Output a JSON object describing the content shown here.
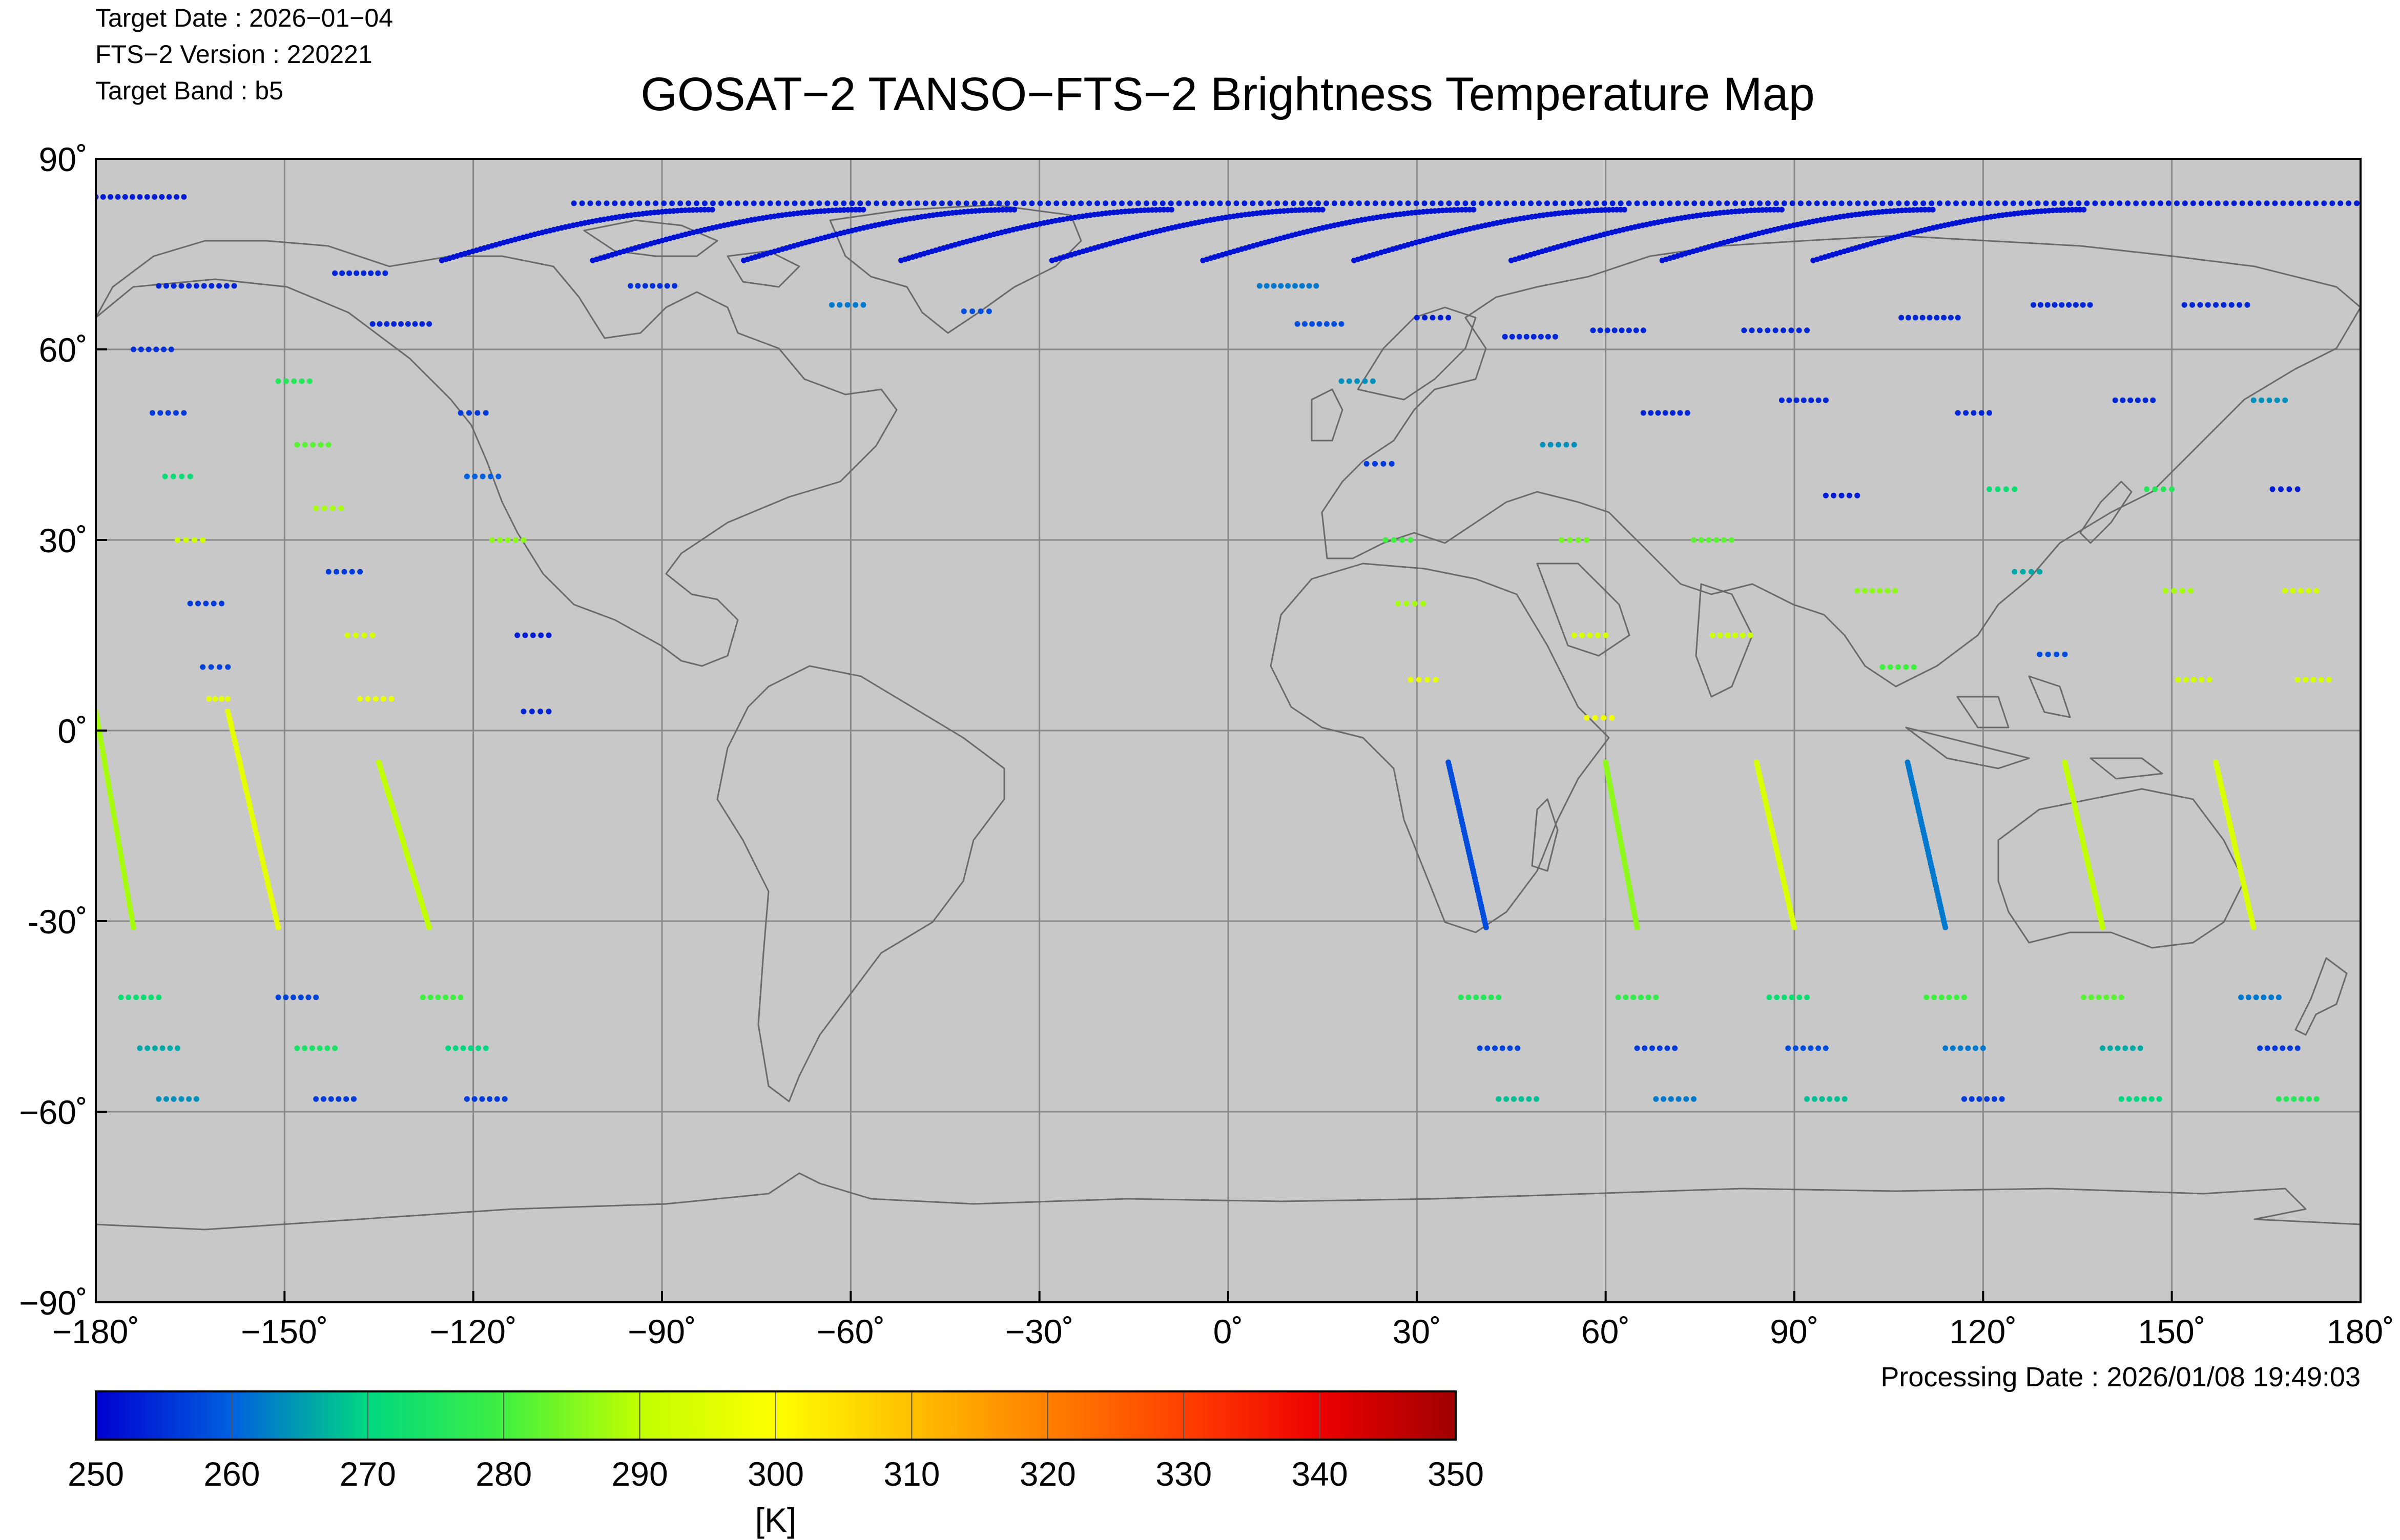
{
  "header": {
    "target_date_label": "Target Date   : 2026−01−04",
    "version_label": "FTS−2 Version : 220221",
    "band_label": "Target Band   : b5"
  },
  "footer": {
    "processing_date": "Processing Date : 2026/01/08 19:49:03"
  },
  "colors": {
    "map_background": "#c8c8c8",
    "grid": "#888888",
    "coastline": "#6a6a6a"
  },
  "chart_data": {
    "type": "scatter",
    "title": "GOSAT−2 TANSO−FTS−2 Brightness Temperature Map",
    "xlabel": "",
    "ylabel": "",
    "xlim": [
      -180,
      180
    ],
    "ylim": [
      -90,
      90
    ],
    "grid": true,
    "projection": "equirectangular",
    "x_ticks": [
      -180,
      -150,
      -120,
      -90,
      -60,
      -30,
      0,
      30,
      60,
      90,
      120,
      150,
      180
    ],
    "x_tick_labels": [
      "−180˚",
      "−150˚",
      "−120˚",
      "−90˚",
      "−60˚",
      "−30˚",
      "0˚",
      "30˚",
      "60˚",
      "90˚",
      "120˚",
      "150˚",
      "180˚"
    ],
    "y_ticks": [
      90,
      60,
      30,
      0,
      -30,
      -60,
      -90
    ],
    "y_tick_labels": [
      "90˚",
      "60˚",
      "30˚",
      "0˚",
      "-30˚",
      "−60˚",
      "−90˚"
    ],
    "colorbar": {
      "min": 250,
      "max": 350,
      "ticks": [
        250,
        260,
        270,
        280,
        290,
        300,
        310,
        320,
        330,
        340,
        350
      ],
      "tick_labels": [
        "250",
        "260",
        "270",
        "280",
        "290",
        "300",
        "310",
        "320",
        "330",
        "340",
        "350"
      ],
      "unit": "[K]",
      "colormap": "jet",
      "stops": [
        {
          "value": 250,
          "color": "#0000d0"
        },
        {
          "value": 260,
          "color": "#0060e0"
        },
        {
          "value": 270,
          "color": "#00d880"
        },
        {
          "value": 280,
          "color": "#40f040"
        },
        {
          "value": 290,
          "color": "#c0ff00"
        },
        {
          "value": 300,
          "color": "#ffff00"
        },
        {
          "value": 310,
          "color": "#ffc000"
        },
        {
          "value": 320,
          "color": "#ff8000"
        },
        {
          "value": 330,
          "color": "#ff4000"
        },
        {
          "value": 340,
          "color": "#ee0000"
        },
        {
          "value": 350,
          "color": "#a00000"
        }
      ]
    },
    "scan_rows": [
      {
        "lon": [
          -180,
          -166
        ],
        "lat": 84,
        "temp": 253
      },
      {
        "lon": [
          -170,
          -158
        ],
        "lat": 70,
        "temp": 254
      },
      {
        "lon": [
          -174,
          -168
        ],
        "lat": 60,
        "temp": 255
      },
      {
        "lon": [
          -171,
          -166
        ],
        "lat": 50,
        "temp": 256
      },
      {
        "lon": [
          -169,
          -165
        ],
        "lat": 40,
        "temp": 272
      },
      {
        "lon": [
          -167,
          -163
        ],
        "lat": 30,
        "temp": 292
      },
      {
        "lon": [
          -165,
          -160
        ],
        "lat": 20,
        "temp": 256
      },
      {
        "lon": [
          -163,
          -159
        ],
        "lat": 10,
        "temp": 257
      },
      {
        "lon": [
          -162,
          -159
        ],
        "lat": 5,
        "temp": 296
      },
      {
        "lon": [
          -142,
          -134
        ],
        "lat": 72,
        "temp": 254
      },
      {
        "lon": [
          -136,
          -127
        ],
        "lat": 64,
        "temp": 254
      },
      {
        "lon": [
          -151,
          -146
        ],
        "lat": 55,
        "temp": 276
      },
      {
        "lon": [
          -148,
          -143
        ],
        "lat": 45,
        "temp": 282
      },
      {
        "lon": [
          -145,
          -141
        ],
        "lat": 35,
        "temp": 288
      },
      {
        "lon": [
          -143,
          -138
        ],
        "lat": 25,
        "temp": 256
      },
      {
        "lon": [
          -140,
          -136
        ],
        "lat": 15,
        "temp": 293
      },
      {
        "lon": [
          -138,
          -133
        ],
        "lat": 5,
        "temp": 297
      },
      {
        "lon": [
          -122,
          -118
        ],
        "lat": 50,
        "temp": 256
      },
      {
        "lon": [
          -121,
          -116
        ],
        "lat": 40,
        "temp": 260
      },
      {
        "lon": [
          -117,
          -112
        ],
        "lat": 30,
        "temp": 286
      },
      {
        "lon": [
          -113,
          -108
        ],
        "lat": 15,
        "temp": 253
      },
      {
        "lon": [
          -112,
          -108
        ],
        "lat": 3,
        "temp": 254
      },
      {
        "lon": [
          -95,
          -88
        ],
        "lat": 70,
        "temp": 255
      },
      {
        "lon": [
          -63,
          -58
        ],
        "lat": 67,
        "temp": 262
      },
      {
        "lon": [
          -42,
          -38
        ],
        "lat": 66,
        "temp": 258
      },
      {
        "lon": [
          5,
          14
        ],
        "lat": 70,
        "temp": 262
      },
      {
        "lon": [
          11,
          18
        ],
        "lat": 64,
        "temp": 258
      },
      {
        "lon": [
          18,
          23
        ],
        "lat": 55,
        "temp": 264
      },
      {
        "lon": [
          22,
          26
        ],
        "lat": 42,
        "temp": 256
      },
      {
        "lon": [
          25,
          29
        ],
        "lat": 30,
        "temp": 280
      },
      {
        "lon": [
          27,
          31
        ],
        "lat": 20,
        "temp": 288
      },
      {
        "lon": [
          29,
          33
        ],
        "lat": 8,
        "temp": 296
      },
      {
        "lon": [
          30,
          35
        ],
        "lat": 65,
        "temp": 253
      },
      {
        "lon": [
          44,
          52
        ],
        "lat": 62,
        "temp": 254
      },
      {
        "lon": [
          50,
          55
        ],
        "lat": 45,
        "temp": 264
      },
      {
        "lon": [
          53,
          57
        ],
        "lat": 30,
        "temp": 284
      },
      {
        "lon": [
          55,
          60
        ],
        "lat": 15,
        "temp": 294
      },
      {
        "lon": [
          57,
          61
        ],
        "lat": 2,
        "temp": 298
      },
      {
        "lon": [
          58,
          66
        ],
        "lat": 63,
        "temp": 254
      },
      {
        "lon": [
          66,
          73
        ],
        "lat": 50,
        "temp": 254
      },
      {
        "lon": [
          74,
          80
        ],
        "lat": 30,
        "temp": 282
      },
      {
        "lon": [
          77,
          83
        ],
        "lat": 15,
        "temp": 292
      },
      {
        "lon": [
          82,
          92
        ],
        "lat": 63,
        "temp": 254
      },
      {
        "lon": [
          88,
          95
        ],
        "lat": 52,
        "temp": 254
      },
      {
        "lon": [
          95,
          100
        ],
        "lat": 37,
        "temp": 253
      },
      {
        "lon": [
          100,
          106
        ],
        "lat": 22,
        "temp": 286
      },
      {
        "lon": [
          104,
          109
        ],
        "lat": 10,
        "temp": 280
      },
      {
        "lon": [
          107,
          116
        ],
        "lat": 65,
        "temp": 254
      },
      {
        "lon": [
          116,
          121
        ],
        "lat": 50,
        "temp": 254
      },
      {
        "lon": [
          121,
          125
        ],
        "lat": 38,
        "temp": 272
      },
      {
        "lon": [
          125,
          129
        ],
        "lat": 25,
        "temp": 266
      },
      {
        "lon": [
          129,
          133
        ],
        "lat": 12,
        "temp": 258
      },
      {
        "lon": [
          128,
          137
        ],
        "lat": 67,
        "temp": 254
      },
      {
        "lon": [
          141,
          147
        ],
        "lat": 52,
        "temp": 254
      },
      {
        "lon": [
          146,
          150
        ],
        "lat": 38,
        "temp": 276
      },
      {
        "lon": [
          149,
          153
        ],
        "lat": 22,
        "temp": 288
      },
      {
        "lon": [
          151,
          156
        ],
        "lat": 8,
        "temp": 292
      },
      {
        "lon": [
          152,
          162
        ],
        "lat": 67,
        "temp": 254
      },
      {
        "lon": [
          163,
          168
        ],
        "lat": 52,
        "temp": 264
      },
      {
        "lon": [
          166,
          170
        ],
        "lat": 38,
        "temp": 253
      },
      {
        "lon": [
          168,
          173
        ],
        "lat": 22,
        "temp": 292
      },
      {
        "lon": [
          170,
          175
        ],
        "lat": 8,
        "temp": 294
      },
      {
        "lon": [
          -176,
          -170
        ],
        "lat": -42,
        "temp": 272
      },
      {
        "lon": [
          -173,
          -167
        ],
        "lat": -50,
        "temp": 266
      },
      {
        "lon": [
          -170,
          -164
        ],
        "lat": -58,
        "temp": 264
      },
      {
        "lon": [
          -151,
          -145
        ],
        "lat": -42,
        "temp": 257
      },
      {
        "lon": [
          -148,
          -142
        ],
        "lat": -50,
        "temp": 274
      },
      {
        "lon": [
          -145,
          -139
        ],
        "lat": -58,
        "temp": 256
      },
      {
        "lon": [
          -128,
          -122
        ],
        "lat": -42,
        "temp": 280
      },
      {
        "lon": [
          -124,
          -118
        ],
        "lat": -50,
        "temp": 270
      },
      {
        "lon": [
          -121,
          -115
        ],
        "lat": -58,
        "temp": 256
      },
      {
        "lon": [
          37,
          43
        ],
        "lat": -42,
        "temp": 276
      },
      {
        "lon": [
          40,
          46
        ],
        "lat": -50,
        "temp": 257
      },
      {
        "lon": [
          43,
          49
        ],
        "lat": -58,
        "temp": 268
      },
      {
        "lon": [
          62,
          68
        ],
        "lat": -42,
        "temp": 278
      },
      {
        "lon": [
          65,
          71
        ],
        "lat": -50,
        "temp": 256
      },
      {
        "lon": [
          68,
          74
        ],
        "lat": -58,
        "temp": 262
      },
      {
        "lon": [
          86,
          92
        ],
        "lat": -42,
        "temp": 272
      },
      {
        "lon": [
          89,
          95
        ],
        "lat": -50,
        "temp": 258
      },
      {
        "lon": [
          92,
          98
        ],
        "lat": -58,
        "temp": 268
      },
      {
        "lon": [
          111,
          117
        ],
        "lat": -42,
        "temp": 280
      },
      {
        "lon": [
          114,
          120
        ],
        "lat": -50,
        "temp": 262
      },
      {
        "lon": [
          117,
          123
        ],
        "lat": -58,
        "temp": 256
      },
      {
        "lon": [
          136,
          142
        ],
        "lat": -42,
        "temp": 282
      },
      {
        "lon": [
          139,
          145
        ],
        "lat": -50,
        "temp": 266
      },
      {
        "lon": [
          142,
          148
        ],
        "lat": -58,
        "temp": 270
      },
      {
        "lon": [
          161,
          167
        ],
        "lat": -42,
        "temp": 262
      },
      {
        "lon": [
          164,
          170
        ],
        "lat": -50,
        "temp": 256
      },
      {
        "lon": [
          167,
          173
        ],
        "lat": -58,
        "temp": 276
      }
    ],
    "nadir_tracks": [
      {
        "from": [
          -180,
          3
        ],
        "to": [
          -174,
          -31
        ],
        "temp": 288
      },
      {
        "from": [
          -159,
          3
        ],
        "to": [
          -151,
          -31
        ],
        "temp": 296
      },
      {
        "from": [
          -135,
          -5
        ],
        "to": [
          -127,
          -31
        ],
        "temp": 290
      },
      {
        "from": [
          35,
          -5
        ],
        "to": [
          41,
          -31
        ],
        "temp": 258
      },
      {
        "from": [
          60,
          -5
        ],
        "to": [
          65,
          -31
        ],
        "temp": 286
      },
      {
        "from": [
          84,
          -5
        ],
        "to": [
          90,
          -31
        ],
        "temp": 294
      },
      {
        "from": [
          108,
          -5
        ],
        "to": [
          114,
          -31
        ],
        "temp": 262
      },
      {
        "from": [
          133,
          -5
        ],
        "to": [
          139,
          -31
        ],
        "temp": 290
      },
      {
        "from": [
          157,
          -5
        ],
        "to": [
          163,
          -31
        ],
        "temp": 294
      }
    ],
    "arcs": [
      {
        "from": [
          -125,
          74
        ],
        "to": [
          -82,
          82
        ],
        "temp": 252
      },
      {
        "from": [
          -101,
          74
        ],
        "to": [
          -58,
          82
        ],
        "temp": 252
      },
      {
        "from": [
          -77,
          74
        ],
        "to": [
          -34,
          82
        ],
        "temp": 252
      },
      {
        "from": [
          -52,
          74
        ],
        "to": [
          -9,
          82
        ],
        "temp": 252
      },
      {
        "from": [
          -28,
          74
        ],
        "to": [
          15,
          82
        ],
        "temp": 252
      },
      {
        "from": [
          -4,
          74
        ],
        "to": [
          39,
          82
        ],
        "temp": 252
      },
      {
        "from": [
          20,
          74
        ],
        "to": [
          63,
          82
        ],
        "temp": 252
      },
      {
        "from": [
          45,
          74
        ],
        "to": [
          88,
          82
        ],
        "temp": 252
      },
      {
        "from": [
          69,
          74
        ],
        "to": [
          112,
          82
        ],
        "temp": 252
      },
      {
        "from": [
          93,
          74
        ],
        "to": [
          136,
          82
        ],
        "temp": 252
      }
    ],
    "polar_row": {
      "lon": [
        -104,
        180
      ],
      "lat": 83,
      "temp": 253
    }
  }
}
